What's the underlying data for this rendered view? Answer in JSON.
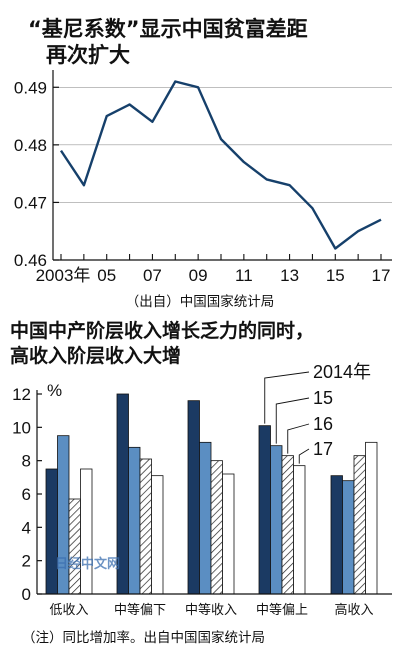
{
  "colors": {
    "line": "#16406b",
    "dark": "#1b3a63",
    "medium": "#5b8ec2",
    "hatch": "#222222",
    "white": "#ffffff"
  },
  "chart_data": [
    {
      "type": "line",
      "title_line1": "“基尼系数”显示中国贫富差距",
      "title_line2": "再次扩大",
      "x": [
        2003,
        2004,
        2005,
        2006,
        2007,
        2008,
        2009,
        2010,
        2011,
        2012,
        2013,
        2014,
        2015,
        2016,
        2017
      ],
      "values": [
        0.479,
        0.473,
        0.485,
        0.487,
        0.484,
        0.491,
        0.49,
        0.481,
        0.477,
        0.474,
        0.473,
        0.469,
        0.462,
        0.465,
        0.467
      ],
      "xtick_labels": [
        "2003年",
        "05",
        "07",
        "09",
        "11",
        "13",
        "15",
        "17"
      ],
      "ytick_labels": [
        "0.49",
        "0.48",
        "0.47",
        "0.46"
      ],
      "ylim": [
        0.46,
        0.493
      ],
      "source": "（出自）中国国家统计局"
    },
    {
      "type": "bar",
      "title_line1": "中国中产阶层收入增长乏力的同时，",
      "title_line2": "高收入阶层收入大增",
      "unit": "%",
      "categories": [
        "低收入",
        "中等偏下",
        "中等收入",
        "中等偏上",
        "高收入"
      ],
      "series": [
        {
          "name": "2014年",
          "values": [
            7.5,
            12.0,
            11.6,
            10.1,
            7.1
          ]
        },
        {
          "name": "15",
          "values": [
            9.5,
            8.8,
            9.1,
            8.9,
            6.8
          ]
        },
        {
          "name": "16",
          "values": [
            5.7,
            8.1,
            8.0,
            8.3,
            8.3
          ]
        },
        {
          "name": "17",
          "values": [
            7.5,
            7.1,
            7.2,
            7.7,
            9.1
          ]
        }
      ],
      "ytick_labels": [
        "0",
        "2",
        "4",
        "6",
        "8",
        "10",
        "12"
      ],
      "ylim": [
        0,
        12.5
      ],
      "note": "（注）同比增加率。出自中国国家统计局",
      "watermark": "日经中文网"
    }
  ]
}
